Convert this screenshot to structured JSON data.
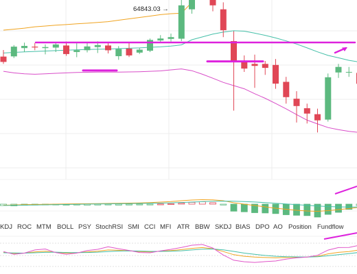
{
  "chart_data": {
    "type": "candlestick",
    "high_label": "64843.03",
    "high_arrow": "→",
    "indicator_tabs": [
      "KDJ",
      "ROC",
      "MTM",
      "BOLL",
      "PSY",
      "StochRSI",
      "SMI",
      "CCI",
      "MFI",
      "ATR",
      "BBW",
      "SKDJ",
      "BIAS",
      "DPO",
      "AO",
      "Position",
      "Fundflow"
    ],
    "colors": {
      "up": "#5cb97f",
      "down": "#e04756",
      "boll_upper": "#f0a31f",
      "boll_mid": "#44bfa8",
      "boll_lower": "#d84cc8",
      "drawing": "#dd22dd",
      "grid": "#ececec"
    },
    "candles": [
      {
        "o": 60320,
        "h": 60650,
        "l": 59950,
        "c": 60050
      },
      {
        "o": 60330,
        "h": 60900,
        "l": 60250,
        "c": 60820
      },
      {
        "o": 60750,
        "h": 61020,
        "l": 60560,
        "c": 60860
      },
      {
        "o": 60820,
        "h": 61000,
        "l": 60640,
        "c": 60780
      },
      {
        "o": 60750,
        "h": 60930,
        "l": 60430,
        "c": 60800
      },
      {
        "o": 60770,
        "h": 61050,
        "l": 60550,
        "c": 60930
      },
      {
        "o": 60880,
        "h": 61080,
        "l": 60360,
        "c": 60450
      },
      {
        "o": 60550,
        "h": 60990,
        "l": 60290,
        "c": 60640
      },
      {
        "o": 60640,
        "h": 61010,
        "l": 60530,
        "c": 60830
      },
      {
        "o": 60800,
        "h": 61090,
        "l": 60500,
        "c": 60900
      },
      {
        "o": 60880,
        "h": 61010,
        "l": 60480,
        "c": 60640
      },
      {
        "o": 60340,
        "h": 60850,
        "l": 60160,
        "c": 60700
      },
      {
        "o": 60720,
        "h": 61050,
        "l": 60300,
        "c": 60380
      },
      {
        "o": 60520,
        "h": 60770,
        "l": 60450,
        "c": 60670
      },
      {
        "o": 60620,
        "h": 61230,
        "l": 60550,
        "c": 61160
      },
      {
        "o": 61130,
        "h": 61400,
        "l": 61060,
        "c": 61230
      },
      {
        "o": 61210,
        "h": 61480,
        "l": 61080,
        "c": 61300
      },
      {
        "o": 61220,
        "h": 64843,
        "l": 61100,
        "c": 62900
      },
      {
        "o": 62700,
        "h": 64843,
        "l": 62480,
        "c": 64380
      },
      {
        "o": 64300,
        "h": 64600,
        "l": 63850,
        "c": 63950
      },
      {
        "o": 64200,
        "h": 64380,
        "l": 62600,
        "c": 62900
      },
      {
        "o": 62700,
        "h": 63050,
        "l": 61300,
        "c": 61650
      },
      {
        "o": 61100,
        "h": 61600,
        "l": 57600,
        "c": 60050
      },
      {
        "o": 60050,
        "h": 60380,
        "l": 59550,
        "c": 59720
      },
      {
        "o": 59950,
        "h": 60420,
        "l": 58750,
        "c": 59850
      },
      {
        "o": 59950,
        "h": 60100,
        "l": 59400,
        "c": 59750
      },
      {
        "o": 59900,
        "h": 60200,
        "l": 58700,
        "c": 58960
      },
      {
        "o": 59050,
        "h": 59300,
        "l": 57950,
        "c": 58280
      },
      {
        "o": 58200,
        "h": 58580,
        "l": 57000,
        "c": 57830
      },
      {
        "o": 57720,
        "h": 57950,
        "l": 56950,
        "c": 57450
      },
      {
        "o": 57420,
        "h": 57700,
        "l": 56500,
        "c": 57110
      },
      {
        "o": 57150,
        "h": 59470,
        "l": 57050,
        "c": 59280
      },
      {
        "o": 59520,
        "h": 59950,
        "l": 59250,
        "c": 59800
      },
      {
        "o": 59520,
        "h": 59800,
        "l": 59300,
        "c": 59550
      },
      {
        "o": 59500,
        "h": 59800,
        "l": 58600,
        "c": 58950
      },
      {
        "o": 59100,
        "h": 60800,
        "l": 58900,
        "c": 60660
      },
      {
        "o": 60540,
        "h": 60900,
        "l": 60300,
        "c": 60650
      }
    ],
    "boll_upper": [
      61650,
      61700,
      61750,
      61820,
      61860,
      61900,
      61930,
      61970,
      62000,
      62040,
      62080,
      62150,
      62220,
      62290,
      62360,
      62430,
      62480,
      62500,
      63050,
      63680,
      64190,
      64330,
      64390,
      64560,
      64650,
      64700,
      64750,
      64780,
      64830,
      64850,
      64850,
      64850,
      64830,
      64810,
      64780,
      64720,
      64690
    ],
    "boll_mid": [
      60500,
      60530,
      60560,
      60580,
      60600,
      60620,
      60640,
      60660,
      60680,
      60690,
      60700,
      60720,
      60740,
      60760,
      60790,
      60810,
      60850,
      60910,
      61170,
      61310,
      61450,
      61550,
      61620,
      61600,
      61500,
      61390,
      61260,
      61110,
      60950,
      60760,
      60560,
      60380,
      60260,
      60130,
      60050,
      60030,
      60020
    ],
    "boll_lower": [
      59580,
      59500,
      59450,
      59430,
      59450,
      59480,
      59500,
      59520,
      59530,
      59540,
      59540,
      59540,
      59550,
      59560,
      59580,
      59600,
      59650,
      59700,
      59610,
      59430,
      59230,
      59020,
      58860,
      58700,
      58450,
      58220,
      57960,
      57690,
      57400,
      57120,
      56930,
      56750,
      56640,
      56560,
      56500,
      56490,
      56490
    ],
    "macd_hist": [
      -0.5,
      -0.6,
      -0.4,
      -0.3,
      -0.25,
      -0.2,
      -0.35,
      -0.3,
      -0.35,
      -0.3,
      -0.2,
      -0.35,
      -0.3,
      -0.2,
      -0.15,
      0.05,
      0.15,
      0.35,
      0.6,
      0.8,
      0.5,
      -0.3,
      -2.4,
      -2.6,
      -2.9,
      -3.0,
      -3.2,
      -3.6,
      -3.8,
      -3.9,
      -4.4,
      -3.5,
      -2.8,
      -1.8,
      -0.5,
      0.4,
      0.8
    ],
    "macd_dif": [
      -0.3,
      -0.25,
      -0.15,
      -0.1,
      -0.05,
      0.0,
      0.05,
      0.1,
      0.12,
      0.15,
      0.2,
      0.25,
      0.3,
      0.35,
      0.45,
      0.6,
      0.75,
      1.0,
      1.2,
      1.3,
      1.25,
      1.0,
      0.4,
      0.0,
      -0.4,
      -0.8,
      -1.2,
      -1.5,
      -1.8,
      -2.0,
      -2.1,
      -1.9,
      -1.6,
      -1.3,
      -0.9,
      -0.4,
      0.1
    ],
    "macd_dea": [
      -0.4,
      -0.35,
      -0.3,
      -0.25,
      -0.2,
      -0.15,
      -0.1,
      -0.05,
      0.0,
      0.05,
      0.08,
      0.12,
      0.16,
      0.2,
      0.25,
      0.3,
      0.38,
      0.48,
      0.6,
      0.72,
      0.82,
      0.88,
      0.85,
      0.75,
      0.62,
      0.45,
      0.25,
      0.05,
      -0.15,
      -0.35,
      -0.55,
      -0.7,
      -0.8,
      -0.85,
      -0.85,
      -0.8,
      -0.7
    ],
    "kdj_k": [
      55,
      48,
      50,
      58,
      62,
      55,
      50,
      52,
      58,
      62,
      70,
      68,
      65,
      60,
      58,
      62,
      66,
      72,
      80,
      85,
      78,
      60,
      40,
      30,
      25,
      22,
      20,
      22,
      24,
      25,
      30,
      45,
      55,
      60,
      70,
      80,
      88
    ],
    "kdj_d": [
      52,
      51,
      50,
      52,
      55,
      56,
      54,
      53,
      54,
      56,
      60,
      63,
      64,
      63,
      61,
      61,
      62,
      65,
      70,
      75,
      76,
      71,
      61,
      50,
      42,
      35,
      30,
      27,
      26,
      25,
      27,
      33,
      40,
      47,
      55,
      63,
      71
    ],
    "kdj_j": [
      60,
      42,
      50,
      70,
      76,
      53,
      42,
      50,
      66,
      74,
      90,
      78,
      67,
      54,
      52,
      64,
      74,
      86,
      100,
      105,
      82,
      38,
      5,
      -5,
      -9,
      -4,
      0,
      12,
      20,
      25,
      36,
      69,
      85,
      86,
      100,
      114,
      120
    ]
  }
}
